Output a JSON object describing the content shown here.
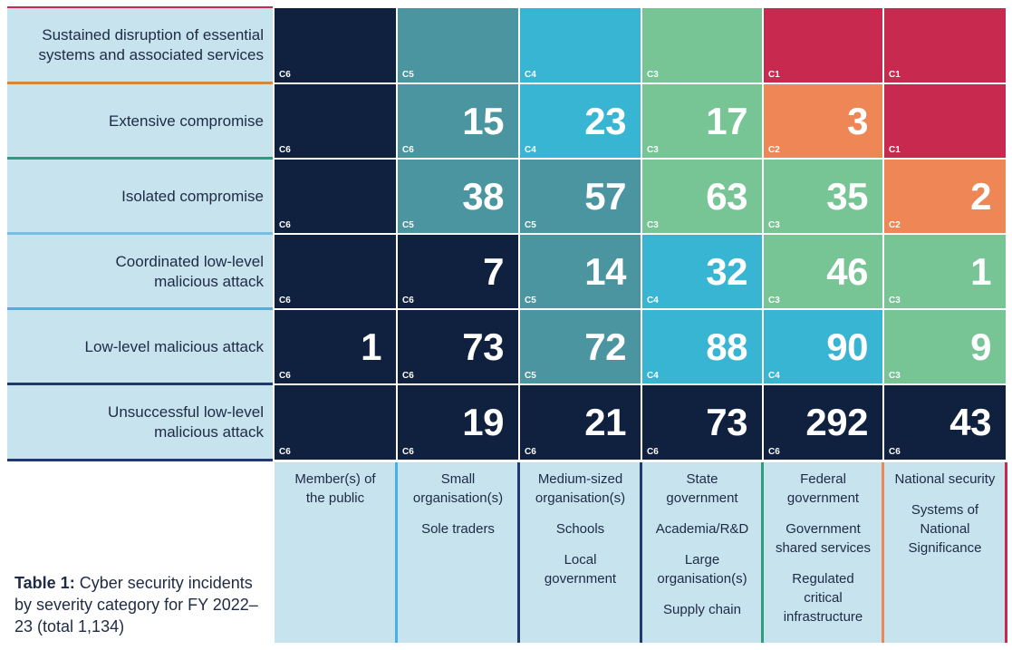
{
  "caption": {
    "label": "Table 1:",
    "text": "Cyber security incidents by severity category for FY 2022–23 (total 1,134)"
  },
  "colors": {
    "C1": "#c8294e",
    "C2": "#ef8656",
    "C3": "#77c494",
    "C4": "#37b5d3",
    "C5": "#4a95a0",
    "C6": "#10203f",
    "label_bg": "#c6e3ee"
  },
  "chart_data": {
    "type": "heatmap",
    "rows": [
      {
        "label": [
          "Sustained disruption of essential",
          "systems and associated services"
        ],
        "line_color": "#d18a3c"
      },
      {
        "label": [
          "Extensive compromise"
        ],
        "line_color": "#2f9b7f"
      },
      {
        "label": [
          "Isolated compromise"
        ],
        "line_color": "#79bde0"
      },
      {
        "label": [
          "Coordinated low-level",
          "malicious attack"
        ],
        "line_color": "#4ab0e4"
      },
      {
        "label": [
          "Low-level malicious attack"
        ],
        "line_color": "#1f3a6b"
      },
      {
        "label": [
          "Unsuccessful low-level",
          "malicious attack"
        ],
        "line_color": "#1f3a6b"
      }
    ],
    "columns": [
      {
        "lines": [
          [
            "Member(s) of",
            "the public"
          ]
        ],
        "line_color": "#4ab0e4"
      },
      {
        "lines": [
          [
            "Small",
            "organisation(s)"
          ],
          [
            "Sole traders"
          ]
        ],
        "line_color": "#1f3a6b"
      },
      {
        "lines": [
          [
            "Medium-sized",
            "organisation(s)"
          ],
          [
            "Schools"
          ],
          [
            "Local",
            "government"
          ]
        ],
        "line_color": "#1f3a6b"
      },
      {
        "lines": [
          [
            "State",
            "government"
          ],
          [
            "Academia/R&D"
          ],
          [
            "Large",
            "organisation(s)"
          ],
          [
            "Supply chain"
          ]
        ],
        "line_color": "#2f9b7f"
      },
      {
        "lines": [
          [
            "Federal",
            "government"
          ],
          [
            "Government",
            "shared services"
          ],
          [
            "Regulated",
            "critical",
            "infrastructure"
          ]
        ],
        "line_color": "#ef8656"
      },
      {
        "lines": [
          [
            "National security"
          ],
          [
            "Systems of",
            "National",
            "Significance"
          ]
        ],
        "line_color": "#c8294e"
      }
    ],
    "cells": [
      [
        {
          "code": "C6",
          "value": null
        },
        {
          "code": "C5",
          "value": null
        },
        {
          "code": "C4",
          "value": null
        },
        {
          "code": "C3",
          "value": null
        },
        {
          "code": "C1",
          "value": null
        },
        {
          "code": "C1",
          "value": null
        }
      ],
      [
        {
          "code": "C6",
          "value": null
        },
        {
          "code": "C6",
          "value": 15,
          "color": "C5"
        },
        {
          "code": "C4",
          "value": 23
        },
        {
          "code": "C3",
          "value": 17
        },
        {
          "code": "C2",
          "value": 3
        },
        {
          "code": "C1",
          "value": null
        }
      ],
      [
        {
          "code": "C6",
          "value": null
        },
        {
          "code": "C5",
          "value": 38
        },
        {
          "code": "C5",
          "value": 57
        },
        {
          "code": "C3",
          "value": 63
        },
        {
          "code": "C3",
          "value": 35
        },
        {
          "code": "C2",
          "value": 2
        }
      ],
      [
        {
          "code": "C6",
          "value": null
        },
        {
          "code": "C6",
          "value": 7
        },
        {
          "code": "C5",
          "value": 14
        },
        {
          "code": "C4",
          "value": 32
        },
        {
          "code": "C3",
          "value": 46
        },
        {
          "code": "C3",
          "value": 1
        }
      ],
      [
        {
          "code": "C6",
          "value": 1
        },
        {
          "code": "C6",
          "value": 73
        },
        {
          "code": "C5",
          "value": 72
        },
        {
          "code": "C4",
          "value": 88
        },
        {
          "code": "C4",
          "value": 90
        },
        {
          "code": "C3",
          "value": 9
        }
      ],
      [
        {
          "code": "C6",
          "value": null
        },
        {
          "code": "C6",
          "value": 19
        },
        {
          "code": "C6",
          "value": 21
        },
        {
          "code": "C6",
          "value": 73
        },
        {
          "code": "C6",
          "value": 292
        },
        {
          "code": "C6",
          "value": 43
        }
      ]
    ]
  }
}
